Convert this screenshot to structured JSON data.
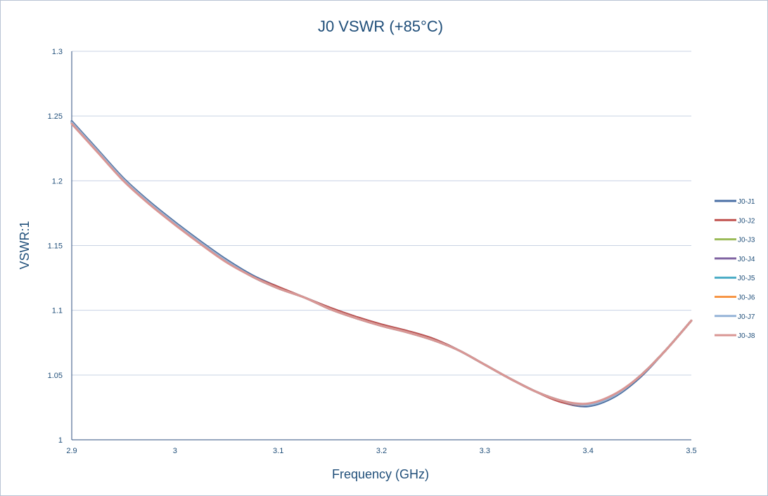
{
  "chart_data": {
    "type": "line",
    "title": "J0 VSWR (+85°C)",
    "xlabel": "Frequency (GHz)",
    "ylabel": "VSWR:1",
    "xlim": [
      2.9,
      3.5
    ],
    "ylim": [
      1,
      1.3
    ],
    "x_ticks": [
      "2.9",
      "3",
      "3.1",
      "3.2",
      "3.3",
      "3.4",
      "3.5"
    ],
    "y_ticks": [
      "1",
      "1.05",
      "1.1",
      "1.15",
      "1.2",
      "1.25",
      "1.3"
    ],
    "grid": true,
    "legend_position": "right",
    "x": [
      2.9,
      2.925,
      2.95,
      2.975,
      3.0,
      3.025,
      3.05,
      3.075,
      3.1,
      3.125,
      3.15,
      3.175,
      3.2,
      3.225,
      3.25,
      3.275,
      3.3,
      3.325,
      3.35,
      3.375,
      3.4,
      3.425,
      3.45,
      3.475,
      3.5
    ],
    "series": [
      {
        "name": "J0-J1",
        "color": "#4a6fa5",
        "values": [
          1.246,
          1.224,
          1.202,
          1.184,
          1.168,
          1.153,
          1.139,
          1.127,
          1.118,
          1.11,
          1.102,
          1.095,
          1.089,
          1.084,
          1.078,
          1.069,
          1.058,
          1.047,
          1.037,
          1.029,
          1.026,
          1.033,
          1.048,
          1.069,
          1.092
        ]
      },
      {
        "name": "J0-J2",
        "color": "#c0504d",
        "values": [
          1.245,
          1.223,
          1.201,
          1.183,
          1.167,
          1.152,
          1.138,
          1.126,
          1.118,
          1.11,
          1.102,
          1.095,
          1.089,
          1.084,
          1.078,
          1.069,
          1.058,
          1.047,
          1.037,
          1.029,
          1.027,
          1.034,
          1.049,
          1.069,
          1.092
        ]
      },
      {
        "name": "J0-J3",
        "color": "#9bbb59",
        "values": [
          1.245,
          1.223,
          1.201,
          1.183,
          1.167,
          1.152,
          1.138,
          1.126,
          1.117,
          1.11,
          1.101,
          1.094,
          1.088,
          1.083,
          1.077,
          1.069,
          1.058,
          1.047,
          1.037,
          1.03,
          1.027,
          1.034,
          1.049,
          1.069,
          1.092
        ]
      },
      {
        "name": "J0-J4",
        "color": "#8064a2",
        "values": [
          1.245,
          1.223,
          1.201,
          1.183,
          1.167,
          1.152,
          1.138,
          1.126,
          1.117,
          1.11,
          1.101,
          1.094,
          1.088,
          1.083,
          1.077,
          1.069,
          1.058,
          1.047,
          1.037,
          1.03,
          1.027,
          1.034,
          1.049,
          1.069,
          1.092
        ]
      },
      {
        "name": "J0-J5",
        "color": "#4bacc6",
        "values": [
          1.245,
          1.223,
          1.201,
          1.183,
          1.167,
          1.152,
          1.138,
          1.126,
          1.117,
          1.11,
          1.101,
          1.094,
          1.088,
          1.083,
          1.077,
          1.069,
          1.058,
          1.047,
          1.037,
          1.03,
          1.027,
          1.034,
          1.049,
          1.069,
          1.092
        ]
      },
      {
        "name": "J0-J6",
        "color": "#f79646",
        "values": [
          1.245,
          1.223,
          1.201,
          1.183,
          1.167,
          1.152,
          1.138,
          1.126,
          1.117,
          1.11,
          1.101,
          1.094,
          1.088,
          1.083,
          1.077,
          1.069,
          1.058,
          1.047,
          1.037,
          1.03,
          1.027,
          1.034,
          1.049,
          1.069,
          1.092
        ]
      },
      {
        "name": "J0-J7",
        "color": "#95b3d7",
        "values": [
          1.245,
          1.223,
          1.201,
          1.183,
          1.167,
          1.152,
          1.138,
          1.126,
          1.117,
          1.11,
          1.101,
          1.094,
          1.088,
          1.083,
          1.077,
          1.069,
          1.058,
          1.047,
          1.037,
          1.03,
          1.027,
          1.034,
          1.049,
          1.069,
          1.092
        ]
      },
      {
        "name": "J0-J8",
        "color": "#d99694",
        "values": [
          1.244,
          1.222,
          1.2,
          1.182,
          1.166,
          1.151,
          1.137,
          1.126,
          1.117,
          1.11,
          1.101,
          1.094,
          1.088,
          1.083,
          1.077,
          1.069,
          1.058,
          1.047,
          1.037,
          1.03,
          1.028,
          1.035,
          1.049,
          1.069,
          1.092
        ]
      }
    ]
  }
}
